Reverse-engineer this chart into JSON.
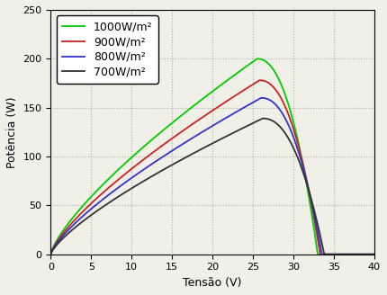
{
  "xlabel": "Tensão (V)",
  "ylabel": "Potência (W)",
  "xlim": [
    0,
    40
  ],
  "ylim": [
    0,
    250
  ],
  "xticks": [
    0,
    5,
    10,
    15,
    20,
    25,
    30,
    35,
    40
  ],
  "yticks": [
    0,
    50,
    100,
    150,
    200,
    250
  ],
  "background_color": "#f0f0e8",
  "curves": [
    {
      "label": "1000W/m²",
      "color": "#00cc00",
      "peak_power": 200,
      "peak_voltage": 25.5,
      "voc": 33.0
    },
    {
      "label": "900W/m²",
      "color": "#cc2222",
      "peak_power": 178,
      "peak_voltage": 25.8,
      "voc": 33.3
    },
    {
      "label": "800W/m²",
      "color": "#3333cc",
      "peak_power": 160,
      "peak_voltage": 26.0,
      "voc": 33.5
    },
    {
      "label": "700W/m²",
      "color": "#333333",
      "peak_power": 139,
      "peak_voltage": 26.2,
      "voc": 33.8
    }
  ],
  "legend_fontsize": 9,
  "axis_fontsize": 9,
  "tick_fontsize": 8
}
